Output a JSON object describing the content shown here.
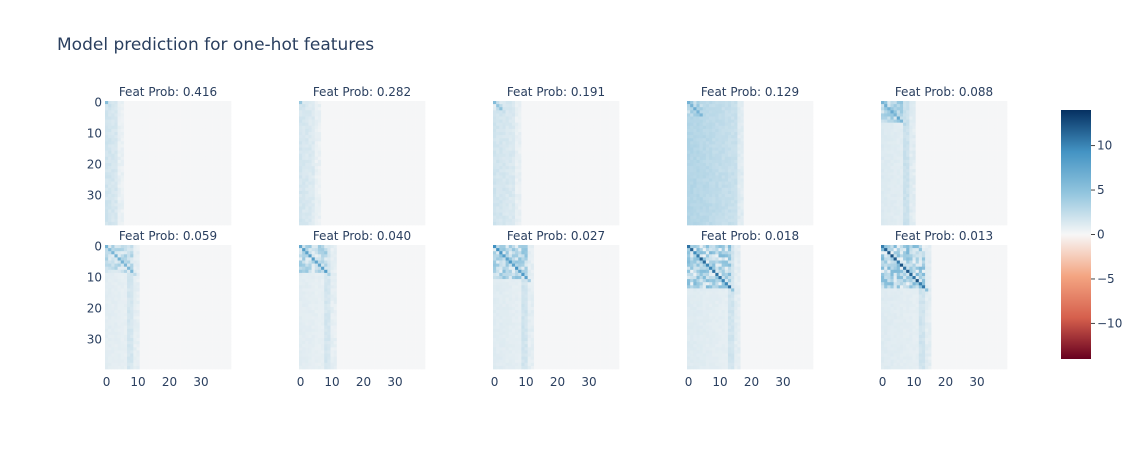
{
  "chart_data": {
    "type": "heatmap",
    "title": "Model prediction for one-hot features",
    "layout": {
      "rows": 2,
      "cols": 5,
      "shared_axes": true
    },
    "matrix_size": [
      40,
      40
    ],
    "x_ticks": [
      0,
      10,
      20,
      30
    ],
    "y_ticks": [
      0,
      10,
      20,
      30
    ],
    "y_reversed": true,
    "colorscale": "RdBu",
    "colorscale_stops": [
      "#67001f",
      "#d6604d",
      "#f4a582",
      "#f7f7f7",
      "#92c5de",
      "#4393c3",
      "#053061"
    ],
    "zlim": [
      -14,
      14
    ],
    "colorbar_ticks": [
      10,
      5,
      0,
      -5,
      -10
    ],
    "colorbar_tick_labels": [
      "10",
      "5",
      "0",
      "−5",
      "−10"
    ],
    "panels": [
      {
        "title": "Feat Prob: 0.416",
        "feat_prob": 0.416,
        "active_features": 1,
        "diagonal_value": 5.5,
        "column_band_value": 1.8,
        "band_width": 6
      },
      {
        "title": "Feat Prob: 0.282",
        "feat_prob": 0.282,
        "active_features": 1,
        "diagonal_value": 5.0,
        "column_band_value": 1.6,
        "band_width": 7
      },
      {
        "title": "Feat Prob: 0.191",
        "feat_prob": 0.191,
        "active_features": 3,
        "diagonal_value": 5.5,
        "column_band_value": 1.8,
        "band_width": 9
      },
      {
        "title": "Feat Prob: 0.129",
        "feat_prob": 0.129,
        "active_features": 5,
        "diagonal_value": 7.0,
        "column_band_value": 3.2,
        "band_width": 18
      },
      {
        "title": "Feat Prob: 0.088",
        "feat_prob": 0.088,
        "active_features": 7,
        "diagonal_value": 7.5,
        "column_band_value": 2.8,
        "band_width": 11
      },
      {
        "title": "Feat Prob: 0.059",
        "feat_prob": 0.059,
        "active_features": 9,
        "diagonal_value": 6.5,
        "column_band_value": 2.2,
        "band_width": 11
      },
      {
        "title": "Feat Prob: 0.040",
        "feat_prob": 0.04,
        "active_features": 9,
        "diagonal_value": 8.5,
        "column_band_value": 2.2,
        "band_width": 12
      },
      {
        "title": "Feat Prob: 0.027",
        "feat_prob": 0.027,
        "active_features": 11,
        "diagonal_value": 9.5,
        "column_band_value": 2.5,
        "band_width": 13
      },
      {
        "title": "Feat Prob: 0.018",
        "feat_prob": 0.018,
        "active_features": 14,
        "diagonal_value": 12.0,
        "column_band_value": 2.6,
        "band_width": 17
      },
      {
        "title": "Feat Prob: 0.013",
        "feat_prob": 0.013,
        "active_features": 14,
        "diagonal_value": 12.5,
        "column_band_value": 2.6,
        "band_width": 16
      }
    ]
  }
}
